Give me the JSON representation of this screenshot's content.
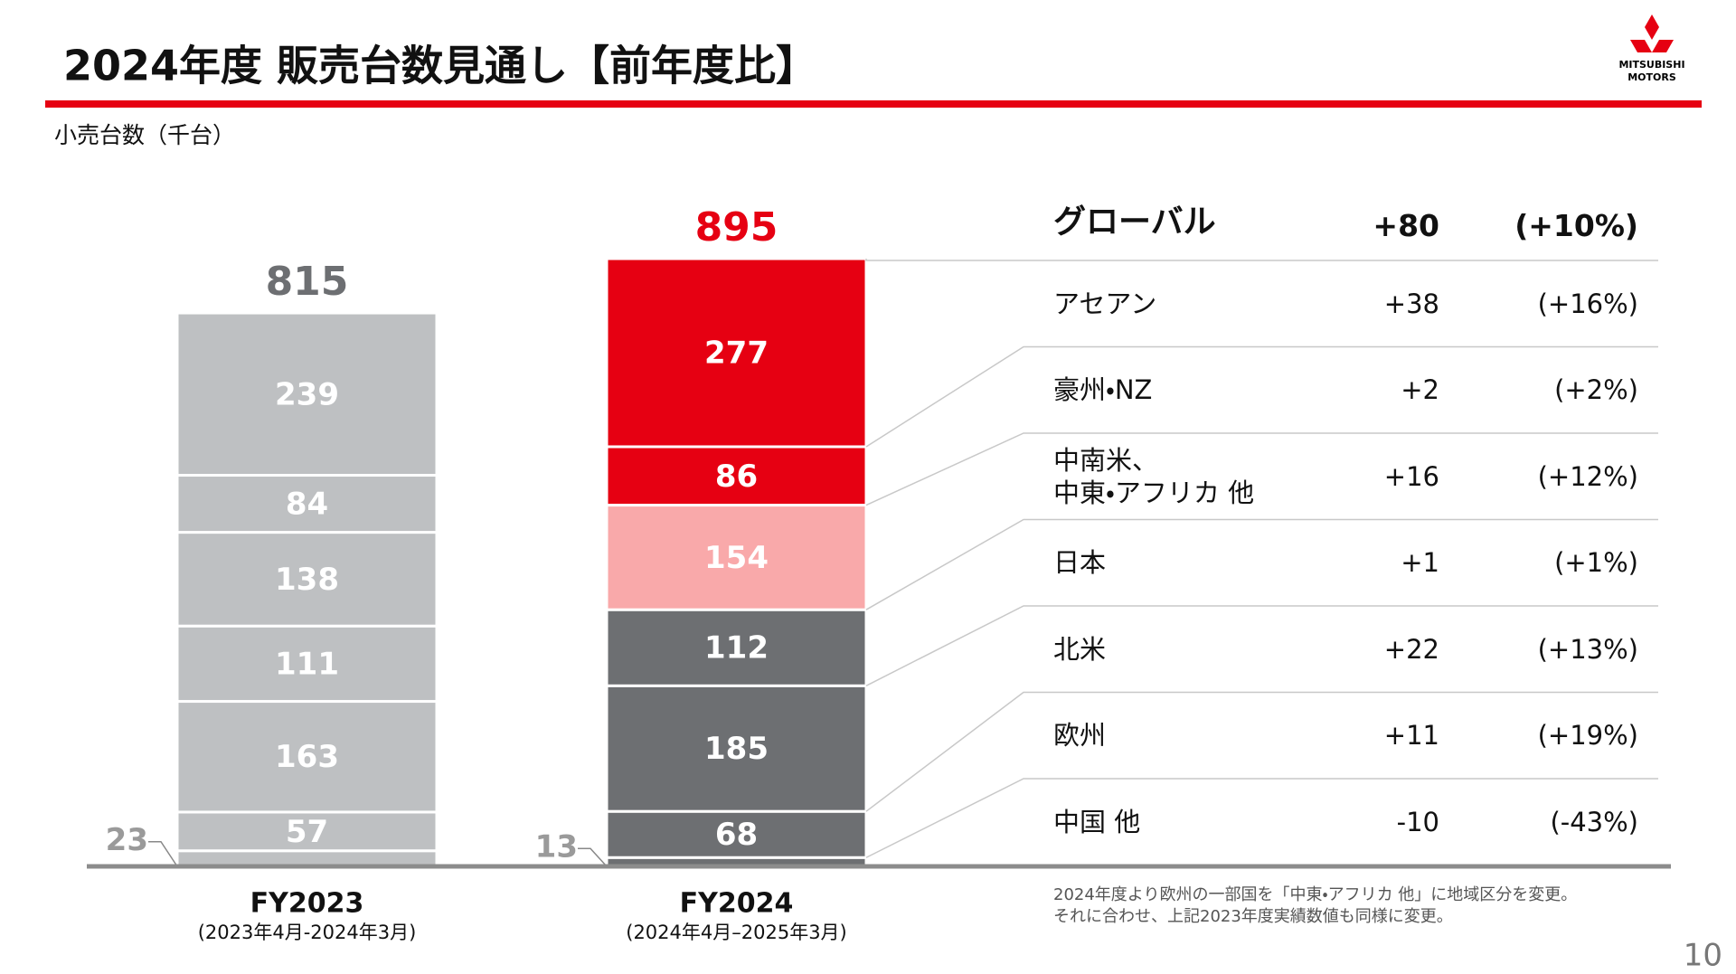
{
  "title": "2024年度 販売台数見通し【前年度比】",
  "logo": [
    "MITSUBISHI",
    "MOTORS"
  ],
  "page_number": "10",
  "footnote": [
    "2024年度より欧州の一部国を「中東・アフリカ 他」に地域区分を変更。",
    "それに合わせ、上記2023年度実績数値も同様に変更。"
  ],
  "chart_data": {
    "type": "stacked-bar",
    "y_label": "小売台数（千台）",
    "categories": [
      "FY2023",
      "FY2024"
    ],
    "category_sublabels": [
      "(2023年4月-2024年3月)",
      "(2024年4月–2025年3月)"
    ],
    "totals": [
      815,
      895
    ],
    "total_colors": [
      "#6d6f72",
      "#e60012"
    ],
    "series": [
      {
        "name": "アセアン",
        "colors": [
          "#bec0c2",
          "#e60012"
        ],
        "values": [
          239,
          277
        ]
      },
      {
        "name": "豪州・NZ",
        "colors": [
          "#bec0c2",
          "#e60012"
        ],
        "values": [
          84,
          86
        ]
      },
      {
        "name": "中南米、\n中東・アフリカ 他",
        "colors": [
          "#bec0c2",
          "#f9a9aa"
        ],
        "values": [
          138,
          154
        ]
      },
      {
        "name": "日本",
        "colors": [
          "#bec0c2",
          "#6d6f72"
        ],
        "values": [
          111,
          112
        ]
      },
      {
        "name": "北米",
        "colors": [
          "#bec0c2",
          "#6d6f72"
        ],
        "values": [
          163,
          185
        ]
      },
      {
        "name": "欧州",
        "colors": [
          "#bec0c2",
          "#6d6f72"
        ],
        "values": [
          57,
          68
        ]
      },
      {
        "name": "中国 他",
        "colors": [
          "#bec0c2",
          "#6d6f72"
        ],
        "values": [
          23,
          13
        ]
      }
    ],
    "table": {
      "header": [
        "グローバル",
        "+80",
        "(+10%)"
      ],
      "rows": [
        [
          "+38",
          "(+16%)"
        ],
        [
          "+2",
          "(+2%)"
        ],
        [
          "+16",
          "(+12%)"
        ],
        [
          "+1",
          "(+1%)"
        ],
        [
          "+22",
          "(+13%)"
        ],
        [
          "+11",
          "(+19%)"
        ],
        [
          "-10",
          "(-43%)"
        ]
      ]
    }
  }
}
